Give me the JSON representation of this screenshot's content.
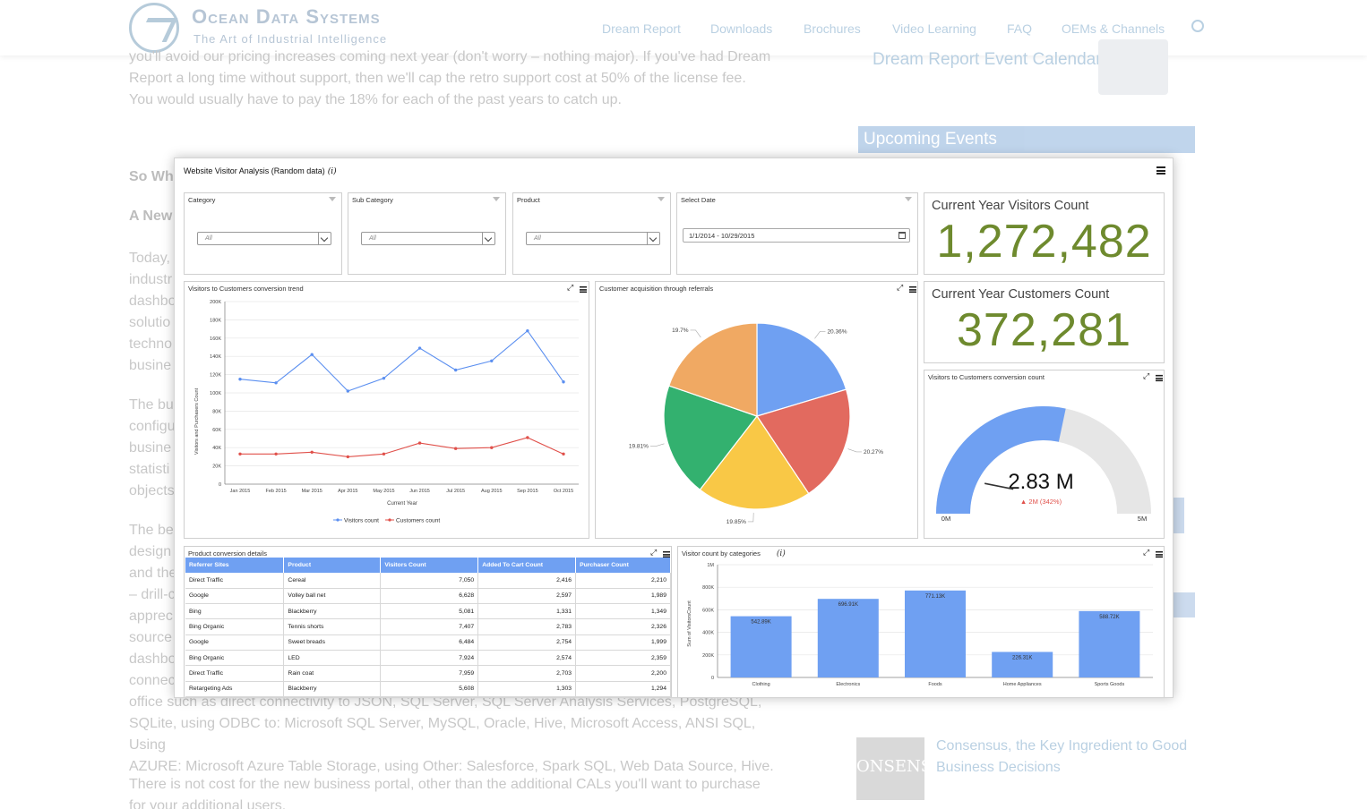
{
  "site": {
    "brand": "Ocean Data Systems",
    "tagline": "The Art of Industrial Intelligence",
    "nav": [
      "Dream Report",
      "Downloads",
      "Brochures",
      "Video Learning",
      "FAQ",
      "OEMs & Channels"
    ],
    "search_icon": "search-icon",
    "intro_lines": [
      "you'll avoid our pricing increases coming next year (don't worry – nothing major). If you've had Dream",
      "Report a long time without support, then we'll cap the retro support cost at 50% of the license fee.",
      "You would usually have to pay the 18% for each of the past years to catch up."
    ],
    "heading_1": "So Wha",
    "heading_2": "A New",
    "left_fragments": [
      "Today,",
      "industr",
      "dashbo",
      "solutio",
      "techno",
      "busine",
      "The bu",
      "configu",
      "busine",
      "statisti",
      "objects",
      "The be",
      "design",
      "and the",
      "– drill-c",
      "apprec",
      "source",
      "dashbo",
      "connec"
    ],
    "bottom_lines": [
      "office such as direct connectivity to JSON, SQL Server, SQL Server Analysis Services, PostgreSQL,",
      "SQLite, using ODBC to: Microsoft SQL Server, MySQL, Oracle, Hive, Microsoft Access, ANSI SQL, Using",
      "AZURE: Microsoft Azure Table Storage, using Other: Salesforce, Spark SQL, Web Data Source, Hive."
    ],
    "closing_lines": [
      "There is not cost for the new business portal, other than the additional CALs you'll want to purchase",
      "for your additional users."
    ],
    "sidebar_calendar_link": "Dream Report Event Calendar",
    "sidebar_events_title": "Upcoming Events",
    "sidebar_article_lines": [
      "Consensus, the Key Ingredient to Good",
      "Business Decisions"
    ],
    "sidebar_article_logo": "ONSENSU"
  },
  "dashboard": {
    "title": "Website Visitor Analysis (Random data)",
    "info_glyph": "i",
    "filters": [
      {
        "label": "Category",
        "value": "All"
      },
      {
        "label": "Sub Category",
        "value": "All"
      },
      {
        "label": "Product",
        "value": "All"
      }
    ],
    "date_filter": {
      "label": "Select Date",
      "value": "1/1/2014 - 10/29/2015"
    },
    "kpi_visitors": {
      "title": "Current Year Visitors Count",
      "value": "1,272,482"
    },
    "kpi_customers": {
      "title": "Current Year Customers  Count",
      "value": "372,281"
    },
    "gauge": {
      "title": "Visitors to Customers conversion count",
      "value_label": "2.83 M",
      "delta_label": "▲ 2M (342%)",
      "min_label": "0M",
      "max_label": "5M",
      "value": 2.83,
      "min": 0,
      "max": 5,
      "fill_color": "#6fa0f2",
      "track_color": "#e6e6e6"
    },
    "table": {
      "title": "Product conversion details",
      "columns": [
        "Referrer Sites",
        "Product",
        "Visitors Count",
        "Added To Cart Count",
        "Purchaser Count"
      ],
      "rows": [
        [
          "Direct Traffic",
          "Cereal",
          "7,050",
          "2,416",
          "2,210"
        ],
        [
          "Google",
          "Volley ball net",
          "6,628",
          "2,597",
          "1,989"
        ],
        [
          "Bing",
          "Blackberry",
          "5,081",
          "1,331",
          "1,349"
        ],
        [
          "Bing Organic",
          "Tennis shorts",
          "7,407",
          "2,783",
          "2,326"
        ],
        [
          "Google",
          "Sweet breads",
          "6,484",
          "2,754",
          "1,999"
        ],
        [
          "Bing Organic",
          "LED",
          "7,924",
          "2,574",
          "2,359"
        ],
        [
          "Direct Traffic",
          "Rain coat",
          "7,959",
          "2,703",
          "2,200"
        ],
        [
          "Retargeting Ads",
          "Blackberry",
          "5,608",
          "1,303",
          "1,294"
        ]
      ]
    }
  },
  "chart_data": [
    {
      "type": "line",
      "title": "Visitors to Customers conversion trend",
      "xlabel": "Current Year",
      "ylabel": "Visitors and Purchasers Count",
      "categories": [
        "Jan 2015",
        "Feb 2015",
        "Mar 2015",
        "Apr 2015",
        "May 2015",
        "Jun 2015",
        "Jul 2015",
        "Aug 2015",
        "Sep 2015",
        "Oct 2015"
      ],
      "y_ticks": [
        "0",
        "20K",
        "40K",
        "60K",
        "80K",
        "100K",
        "120K",
        "140K",
        "160K",
        "180K",
        "200K"
      ],
      "ylim": [
        0,
        200000
      ],
      "grid": true,
      "legend": "bottom",
      "series": [
        {
          "name": "Visitors count",
          "color": "#5b8ff0",
          "values": [
            115000,
            111000,
            142000,
            102000,
            116000,
            149000,
            125000,
            135000,
            168000,
            112000
          ]
        },
        {
          "name": "Customers count",
          "color": "#e0504a",
          "values": [
            33000,
            33000,
            35000,
            30000,
            33000,
            45000,
            39000,
            40000,
            51000,
            33000
          ]
        }
      ]
    },
    {
      "type": "pie",
      "title": "Customer acquisition through referrals",
      "slices": [
        {
          "label": "20.36%",
          "value": 20.36,
          "color": "#6fa0f2"
        },
        {
          "label": "20.27%",
          "value": 20.27,
          "color": "#e26a5f"
        },
        {
          "label": "19.85%",
          "value": 19.85,
          "color": "#f9c846"
        },
        {
          "label": "19.81%",
          "value": 19.81,
          "color": "#33b16f"
        },
        {
          "label": "19.7%",
          "value": 19.7,
          "color": "#f0a963"
        }
      ]
    },
    {
      "type": "bar",
      "title": "Visitor count by categories",
      "ylabel": "Sum of VisitorsCount",
      "categories": [
        "Clothing",
        "Electronics",
        "Foods",
        "Home Appliances",
        "Sports Goods"
      ],
      "values": [
        542890,
        696910,
        771130,
        226310,
        588720
      ],
      "data_labels": [
        "542.89K",
        "696.91K",
        "771.13K",
        "226.31K",
        "588.72K"
      ],
      "y_ticks": [
        "0",
        "200K",
        "400K",
        "600K",
        "800K",
        "1M"
      ],
      "ylim": [
        0,
        1000000
      ],
      "grid": true,
      "color": "#6fa0f2"
    }
  ]
}
